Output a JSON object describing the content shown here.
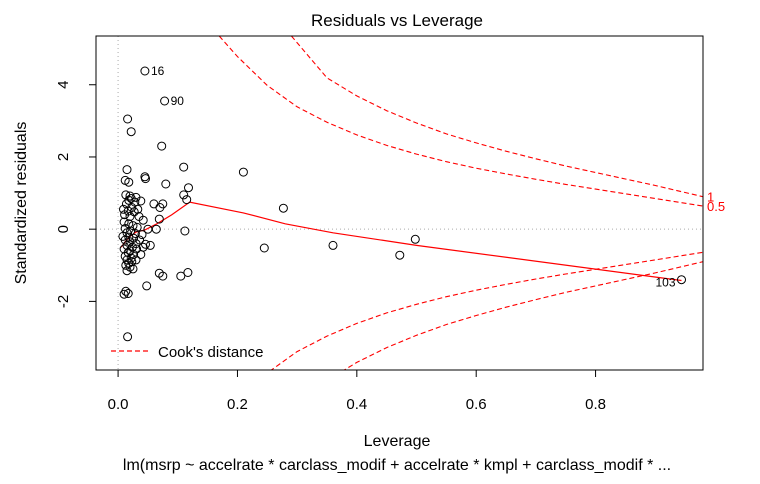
{
  "chart_data": {
    "type": "scatter",
    "title": "Residuals vs Leverage",
    "xlabel": "Leverage",
    "ylabel": "Standardized residuals",
    "subtitle": "lm(msrp ~ accelrate * carclass_modif + accelrate * kmpl + carclass_modif *  ...",
    "xlim": [
      -0.037,
      0.98
    ],
    "ylim": [
      -3.9,
      5.35
    ],
    "x_ticks": [
      0.0,
      0.2,
      0.4,
      0.6,
      0.8
    ],
    "x_tick_labels": [
      "0.0",
      "0.2",
      "0.4",
      "0.6",
      "0.8"
    ],
    "y_ticks": [
      -2,
      0,
      2,
      4
    ],
    "y_tick_labels": [
      "-2",
      "0",
      "2",
      "4"
    ],
    "reference_lines": {
      "x": 0,
      "y": 0
    },
    "points": [
      [
        0.045,
        4.38
      ],
      [
        0.078,
        3.55
      ],
      [
        0.016,
        3.05
      ],
      [
        0.022,
        2.7
      ],
      [
        0.073,
        2.3
      ],
      [
        0.11,
        1.72
      ],
      [
        0.21,
        1.58
      ],
      [
        0.015,
        1.65
      ],
      [
        0.045,
        1.45
      ],
      [
        0.046,
        1.4
      ],
      [
        0.012,
        1.35
      ],
      [
        0.018,
        1.3
      ],
      [
        0.08,
        1.25
      ],
      [
        0.118,
        1.15
      ],
      [
        0.11,
        0.95
      ],
      [
        0.013,
        0.95
      ],
      [
        0.02,
        0.92
      ],
      [
        0.022,
        0.85
      ],
      [
        0.03,
        0.88
      ],
      [
        0.018,
        0.8
      ],
      [
        0.038,
        0.78
      ],
      [
        0.06,
        0.7
      ],
      [
        0.075,
        0.7
      ],
      [
        0.115,
        0.82
      ],
      [
        0.028,
        0.75
      ],
      [
        0.014,
        0.7
      ],
      [
        0.023,
        0.6
      ],
      [
        0.033,
        0.55
      ],
      [
        0.07,
        0.6
      ],
      [
        0.009,
        0.55
      ],
      [
        0.017,
        0.5
      ],
      [
        0.027,
        0.48
      ],
      [
        0.277,
        0.58
      ],
      [
        0.011,
        0.4
      ],
      [
        0.02,
        0.35
      ],
      [
        0.035,
        0.35
      ],
      [
        0.069,
        0.28
      ],
      [
        0.042,
        0.25
      ],
      [
        0.01,
        0.2
      ],
      [
        0.018,
        0.15
      ],
      [
        0.025,
        0.1
      ],
      [
        0.032,
        0.05
      ],
      [
        0.012,
        0.02
      ],
      [
        0.05,
        0.0
      ],
      [
        0.064,
        0.0
      ],
      [
        0.112,
        -0.05
      ],
      [
        0.021,
        -0.05
      ],
      [
        0.015,
        -0.1
      ],
      [
        0.029,
        -0.12
      ],
      [
        0.04,
        -0.15
      ],
      [
        0.008,
        -0.2
      ],
      [
        0.018,
        -0.22
      ],
      [
        0.026,
        -0.25
      ],
      [
        0.036,
        -0.3
      ],
      [
        0.012,
        -0.3
      ],
      [
        0.02,
        -0.35
      ],
      [
        0.03,
        -0.4
      ],
      [
        0.046,
        -0.42
      ],
      [
        0.054,
        -0.45
      ],
      [
        0.015,
        -0.45
      ],
      [
        0.024,
        -0.5
      ],
      [
        0.042,
        -0.5
      ],
      [
        0.01,
        -0.55
      ],
      [
        0.02,
        -0.6
      ],
      [
        0.031,
        -0.55
      ],
      [
        0.017,
        -0.65
      ],
      [
        0.026,
        -0.7
      ],
      [
        0.038,
        -0.7
      ],
      [
        0.012,
        -0.75
      ],
      [
        0.022,
        -0.8
      ],
      [
        0.015,
        -0.85
      ],
      [
        0.03,
        -0.85
      ],
      [
        0.023,
        -0.9
      ],
      [
        0.018,
        -0.95
      ],
      [
        0.013,
        -1.0
      ],
      [
        0.02,
        -1.05
      ],
      [
        0.015,
        -1.15
      ],
      [
        0.025,
        -1.1
      ],
      [
        0.245,
        -0.52
      ],
      [
        0.36,
        -0.45
      ],
      [
        0.498,
        -0.28
      ],
      [
        0.472,
        -0.72
      ],
      [
        0.069,
        -1.22
      ],
      [
        0.075,
        -1.3
      ],
      [
        0.105,
        -1.3
      ],
      [
        0.117,
        -1.2
      ],
      [
        0.048,
        -1.57
      ],
      [
        0.013,
        -1.72
      ],
      [
        0.017,
        -1.78
      ],
      [
        0.01,
        -1.8
      ],
      [
        0.016,
        -2.98
      ],
      [
        0.944,
        -1.4
      ]
    ],
    "point_labels": [
      {
        "x": 0.045,
        "y": 4.38,
        "text": "16"
      },
      {
        "x": 0.078,
        "y": 3.55,
        "text": "90"
      },
      {
        "x": 0.944,
        "y": -1.4,
        "text": "103"
      }
    ],
    "smoother": [
      [
        0.005,
        -0.5
      ],
      [
        0.012,
        -0.35
      ],
      [
        0.02,
        -0.2
      ],
      [
        0.03,
        -0.08
      ],
      [
        0.045,
        -0.02
      ],
      [
        0.065,
        0.15
      ],
      [
        0.09,
        0.4
      ],
      [
        0.12,
        0.75
      ],
      [
        0.21,
        0.45
      ],
      [
        0.28,
        0.15
      ],
      [
        0.36,
        -0.1
      ],
      [
        0.5,
        -0.45
      ],
      [
        0.944,
        -1.42
      ]
    ],
    "cooks_distance": {
      "contours": [
        {
          "level": "0.5",
          "curves": [
            [
              [
                0.1694,
                5.35
              ],
              [
                0.2,
                4.78
              ],
              [
                0.25,
                3.98
              ],
              [
                0.3,
                3.39
              ],
              [
                0.35,
                2.96
              ],
              [
                0.4,
                2.61
              ],
              [
                0.45,
                2.32
              ],
              [
                0.5,
                2.08
              ],
              [
                0.55,
                1.87
              ],
              [
                0.6,
                1.69
              ],
              [
                0.65,
                1.53
              ],
              [
                0.7,
                1.38
              ],
              [
                0.75,
                1.24
              ],
              [
                0.8,
                1.11
              ],
              [
                0.85,
                0.98
              ],
              [
                0.9,
                0.85
              ],
              [
                0.98,
                0.64
              ]
            ],
            [
              [
                0.1694,
                -5.35
              ],
              [
                0.2,
                -4.78
              ],
              [
                0.25,
                -3.98
              ],
              [
                0.3,
                -3.39
              ],
              [
                0.35,
                -2.96
              ],
              [
                0.4,
                -2.61
              ],
              [
                0.45,
                -2.32
              ],
              [
                0.5,
                -2.08
              ],
              [
                0.55,
                -1.87
              ],
              [
                0.6,
                -1.69
              ],
              [
                0.65,
                -1.53
              ],
              [
                0.7,
                -1.38
              ],
              [
                0.75,
                -1.24
              ],
              [
                0.8,
                -1.11
              ],
              [
                0.85,
                -0.98
              ],
              [
                0.9,
                -0.85
              ],
              [
                0.98,
                -0.64
              ]
            ]
          ]
        },
        {
          "level": "1",
          "curves": [
            [
              [
                0.2904,
                5.35
              ],
              [
                0.35,
                4.19
              ],
              [
                0.4,
                3.69
              ],
              [
                0.45,
                3.28
              ],
              [
                0.5,
                2.94
              ],
              [
                0.55,
                2.64
              ],
              [
                0.6,
                2.39
              ],
              [
                0.65,
                2.16
              ],
              [
                0.7,
                1.95
              ],
              [
                0.75,
                1.75
              ],
              [
                0.8,
                1.57
              ],
              [
                0.85,
                1.39
              ],
              [
                0.9,
                1.21
              ],
              [
                0.98,
                0.9
              ]
            ],
            [
              [
                0.2904,
                -5.35
              ],
              [
                0.35,
                -4.19
              ],
              [
                0.4,
                -3.69
              ],
              [
                0.45,
                -3.28
              ],
              [
                0.5,
                -2.94
              ],
              [
                0.55,
                -2.64
              ],
              [
                0.6,
                -2.39
              ],
              [
                0.65,
                -2.16
              ],
              [
                0.7,
                -1.95
              ],
              [
                0.75,
                -1.75
              ],
              [
                0.8,
                -1.57
              ],
              [
                0.85,
                -1.39
              ],
              [
                0.9,
                -1.21
              ],
              [
                0.98,
                -0.9
              ]
            ]
          ]
        }
      ]
    },
    "legend": {
      "label": "Cook's distance",
      "position": "bottom-left"
    },
    "colors": {
      "points": "#000000",
      "smoother": "#ff0000",
      "cooks": "#ff0000",
      "reference": "#aaaaaa",
      "axes": "#000000"
    }
  }
}
